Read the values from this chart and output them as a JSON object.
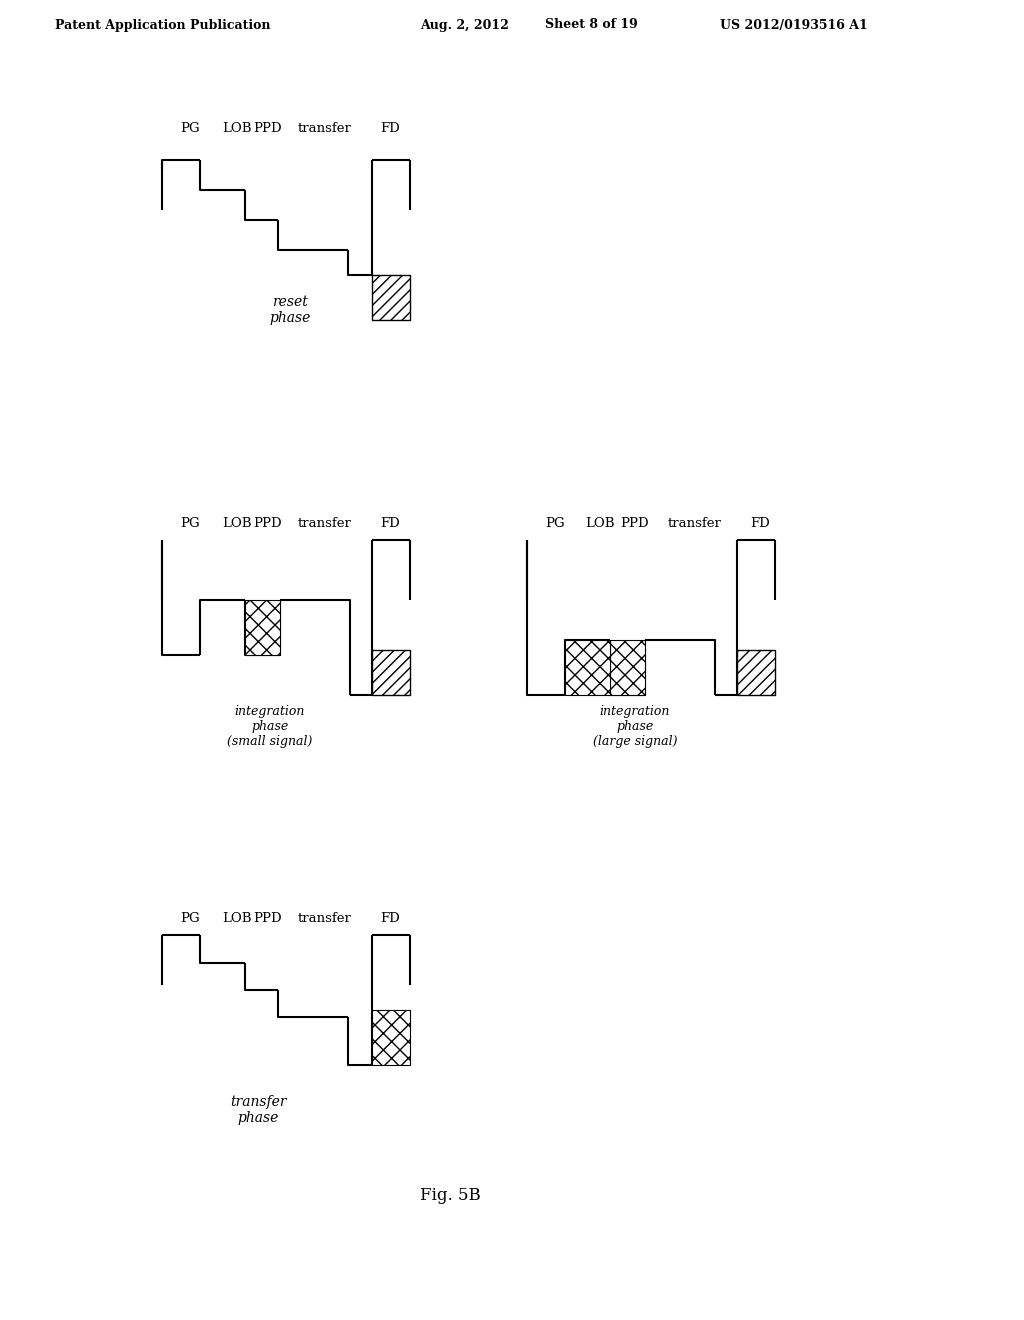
{
  "bg_color": "#ffffff",
  "line_color": "#000000",
  "hatch_diagonal": "/",
  "hatch_cross": "x",
  "hatch_color": "#555555",
  "header_text": "Patent Application Publication",
  "header_date": "Aug. 2, 2012",
  "header_sheet": "Sheet 8 of 19",
  "header_patent": "US 2012/0193516 A1",
  "fig_label": "Fig. 5B",
  "labels": [
    "PG",
    "LOB",
    "PPD",
    "transfer",
    "FD"
  ],
  "diagram1": {
    "label": "reset\nphase",
    "type": "staircase_reset"
  },
  "diagram2": {
    "label": "integration\nphase\n(small signal)",
    "type": "integration_small"
  },
  "diagram3": {
    "label": "integration\nphase\n(large signal)",
    "type": "integration_large"
  },
  "diagram4": {
    "label": "transfer\nphase",
    "type": "transfer"
  }
}
